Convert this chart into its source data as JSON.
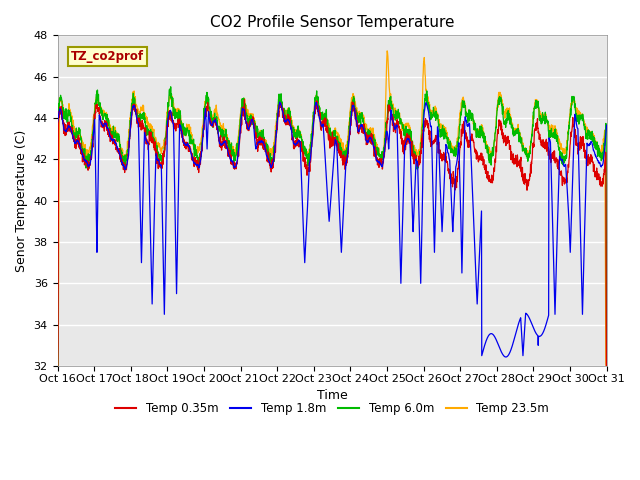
{
  "title": "CO2 Profile Sensor Temperature",
  "ylabel": "Senor Temperature (C)",
  "xlabel": "Time",
  "xlim": [
    0,
    360
  ],
  "ylim": [
    32,
    48
  ],
  "yticks": [
    32,
    34,
    36,
    38,
    40,
    42,
    44,
    46,
    48
  ],
  "xtick_labels": [
    "Oct 16",
    "Oct 17",
    "Oct 18",
    "Oct 19",
    "Oct 20",
    "Oct 21",
    "Oct 22",
    "Oct 23",
    "Oct 24",
    "Oct 25",
    "Oct 26",
    "Oct 27",
    "Oct 28",
    "Oct 29",
    "Oct 30",
    "Oct 31"
  ],
  "xtick_positions": [
    0,
    24,
    48,
    72,
    96,
    120,
    144,
    168,
    192,
    216,
    240,
    264,
    288,
    312,
    336,
    360
  ],
  "colors": {
    "red": "#DD0000",
    "blue": "#0000EE",
    "green": "#00BB00",
    "orange": "#FFAA00"
  },
  "legend_label": "TZ_co2prof",
  "series_labels": [
    "Temp 0.35m",
    "Temp 1.8m",
    "Temp 6.0m",
    "Temp 23.5m"
  ],
  "bg_color": "#E8E8E8",
  "fig_bg_color": "#FFFFFF",
  "grid_color": "#FFFFFF",
  "title_fontsize": 11,
  "axis_label_fontsize": 9,
  "tick_fontsize": 8
}
